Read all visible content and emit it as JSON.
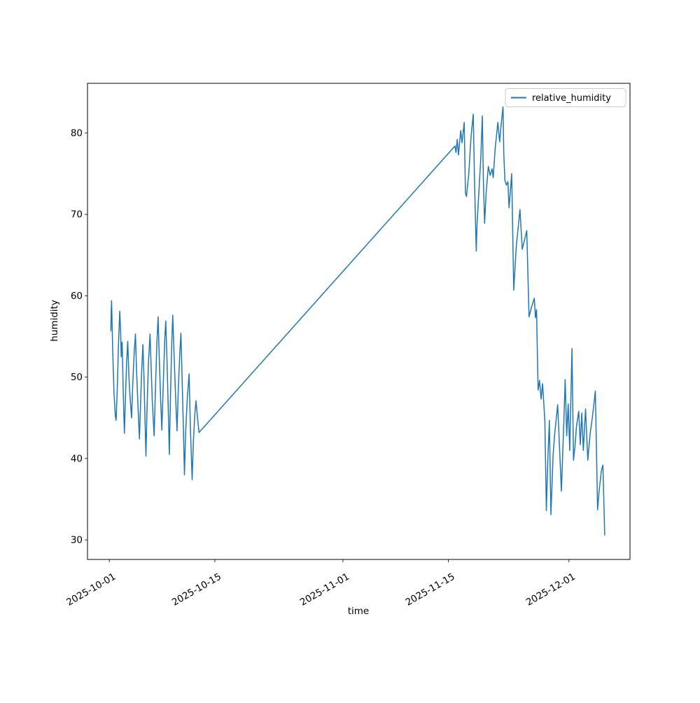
{
  "figure": {
    "background": "#ffffff",
    "plot_border_color": "#000000"
  },
  "chart_data": {
    "type": "line",
    "title": "",
    "xlabel": "time",
    "ylabel": "humidity",
    "grid": false,
    "legend": {
      "position": "upper right",
      "entries": [
        "relative_humidity"
      ]
    },
    "line_color": "#1f77b4",
    "x_axis": {
      "unit": "days since 2025-10-01",
      "range": [
        -2.9,
        69.1
      ],
      "ticks": [
        {
          "t": 0,
          "label": "2025-10-01"
        },
        {
          "t": 14,
          "label": "2025-10-15"
        },
        {
          "t": 31,
          "label": "2025-11-01"
        },
        {
          "t": 45,
          "label": "2025-11-15"
        },
        {
          "t": 61,
          "label": "2025-12-01"
        }
      ]
    },
    "y_axis": {
      "range": [
        27.6,
        86.1
      ],
      "ticks": [
        30,
        40,
        50,
        60,
        70,
        80
      ]
    },
    "series": [
      {
        "name": "relative_humidity",
        "color": "#1f77b4",
        "points": [
          [
            0.2,
            55.7
          ],
          [
            0.24,
            58.0
          ],
          [
            0.3,
            59.4
          ],
          [
            0.45,
            53.0
          ],
          [
            0.62,
            48.0
          ],
          [
            0.8,
            45.2
          ],
          [
            0.9,
            44.7
          ],
          [
            1.05,
            48.5
          ],
          [
            1.2,
            53.5
          ],
          [
            1.38,
            58.1
          ],
          [
            1.5,
            55.5
          ],
          [
            1.58,
            52.5
          ],
          [
            1.7,
            54.3
          ],
          [
            1.85,
            48.0
          ],
          [
            2.0,
            43.1
          ],
          [
            2.15,
            48.0
          ],
          [
            2.3,
            52.0
          ],
          [
            2.44,
            54.4
          ],
          [
            2.6,
            50.0
          ],
          [
            2.75,
            47.5
          ],
          [
            2.95,
            45.0
          ],
          [
            3.1,
            49.0
          ],
          [
            3.3,
            53.0
          ],
          [
            3.46,
            55.3
          ],
          [
            3.6,
            51.0
          ],
          [
            3.8,
            46.5
          ],
          [
            3.99,
            42.4
          ],
          [
            4.15,
            47.0
          ],
          [
            4.3,
            51.0
          ],
          [
            4.46,
            54.0
          ],
          [
            4.58,
            50.5
          ],
          [
            4.7,
            46.0
          ],
          [
            4.86,
            40.3
          ],
          [
            5.0,
            46.0
          ],
          [
            5.2,
            52.0
          ],
          [
            5.41,
            55.3
          ],
          [
            5.55,
            51.0
          ],
          [
            5.7,
            47.0
          ],
          [
            5.94,
            42.8
          ],
          [
            6.1,
            48.0
          ],
          [
            6.3,
            54.0
          ],
          [
            6.47,
            57.4
          ],
          [
            6.6,
            53.0
          ],
          [
            6.8,
            47.5
          ],
          [
            6.97,
            43.5
          ],
          [
            7.15,
            49.0
          ],
          [
            7.35,
            54.5
          ],
          [
            7.49,
            56.9
          ],
          [
            7.65,
            52.0
          ],
          [
            7.82,
            46.0
          ],
          [
            7.96,
            40.5
          ],
          [
            8.1,
            47.0
          ],
          [
            8.28,
            54.0
          ],
          [
            8.42,
            57.6
          ],
          [
            8.6,
            52.5
          ],
          [
            8.8,
            47.5
          ],
          [
            8.98,
            43.4
          ],
          [
            9.15,
            48.5
          ],
          [
            9.35,
            53.0
          ],
          [
            9.5,
            55.4
          ],
          [
            9.65,
            50.0
          ],
          [
            9.82,
            44.0
          ],
          [
            9.97,
            38.0
          ],
          [
            10.12,
            43.0
          ],
          [
            10.35,
            47.5
          ],
          [
            10.59,
            50.4
          ],
          [
            10.75,
            44.0
          ],
          [
            10.99,
            37.4
          ],
          [
            11.15,
            42.0
          ],
          [
            11.35,
            45.5
          ],
          [
            11.5,
            47.1
          ],
          [
            11.7,
            45.0
          ],
          [
            11.9,
            43.2
          ],
          [
            45.87,
            78.4
          ],
          [
            46.0,
            77.6
          ],
          [
            46.17,
            79.2
          ],
          [
            46.33,
            77.3
          ],
          [
            46.64,
            80.3
          ],
          [
            46.8,
            78.8
          ],
          [
            47.1,
            81.3
          ],
          [
            47.26,
            72.6
          ],
          [
            47.4,
            72.2
          ],
          [
            47.7,
            75.0
          ],
          [
            48.0,
            79.5
          ],
          [
            48.3,
            82.3
          ],
          [
            48.45,
            75.0
          ],
          [
            48.6,
            69.0
          ],
          [
            48.7,
            65.5
          ],
          [
            48.8,
            68.8
          ],
          [
            49.0,
            72.0
          ],
          [
            49.3,
            77.0
          ],
          [
            49.5,
            82.1
          ],
          [
            49.65,
            74.0
          ],
          [
            49.8,
            68.9
          ],
          [
            50.0,
            72.5
          ],
          [
            50.3,
            75.9
          ],
          [
            50.55,
            74.8
          ],
          [
            50.8,
            75.6
          ],
          [
            50.95,
            74.5
          ],
          [
            51.2,
            78.0
          ],
          [
            51.56,
            81.3
          ],
          [
            51.8,
            78.9
          ],
          [
            52.0,
            81.0
          ],
          [
            52.25,
            83.2
          ],
          [
            52.35,
            77.5
          ],
          [
            52.5,
            74.2
          ],
          [
            52.7,
            73.6
          ],
          [
            52.9,
            74.0
          ],
          [
            53.05,
            70.8
          ],
          [
            53.4,
            75.0
          ],
          [
            53.67,
            60.7
          ],
          [
            54.0,
            66.0
          ],
          [
            54.5,
            70.6
          ],
          [
            54.8,
            65.7
          ],
          [
            55.4,
            68.0
          ],
          [
            55.7,
            57.4
          ],
          [
            56.0,
            58.5
          ],
          [
            56.4,
            59.7
          ],
          [
            56.55,
            57.3
          ],
          [
            56.7,
            58.3
          ],
          [
            56.9,
            48.4
          ],
          [
            57.1,
            49.6
          ],
          [
            57.3,
            47.3
          ],
          [
            57.5,
            49.2
          ],
          [
            57.8,
            44.6
          ],
          [
            58.0,
            33.6
          ],
          [
            58.2,
            40.0
          ],
          [
            58.4,
            44.7
          ],
          [
            58.6,
            33.1
          ],
          [
            58.9,
            40.5
          ],
          [
            59.1,
            43.0
          ],
          [
            59.5,
            46.6
          ],
          [
            60.0,
            36.0
          ],
          [
            60.3,
            44.0
          ],
          [
            60.5,
            49.7
          ],
          [
            60.7,
            42.8
          ],
          [
            60.9,
            46.7
          ],
          [
            61.1,
            41.0
          ],
          [
            61.4,
            53.5
          ],
          [
            61.6,
            39.8
          ],
          [
            61.8,
            41.5
          ],
          [
            62.0,
            44.0
          ],
          [
            62.3,
            45.8
          ],
          [
            62.5,
            41.7
          ],
          [
            62.7,
            45.6
          ],
          [
            62.9,
            41.0
          ],
          [
            63.2,
            46.1
          ],
          [
            63.5,
            39.8
          ],
          [
            63.8,
            43.0
          ],
          [
            64.1,
            45.0
          ],
          [
            64.5,
            48.3
          ],
          [
            64.8,
            33.7
          ],
          [
            65.0,
            36.0
          ],
          [
            65.3,
            38.5
          ],
          [
            65.5,
            39.2
          ],
          [
            65.75,
            30.6
          ]
        ]
      }
    ]
  }
}
